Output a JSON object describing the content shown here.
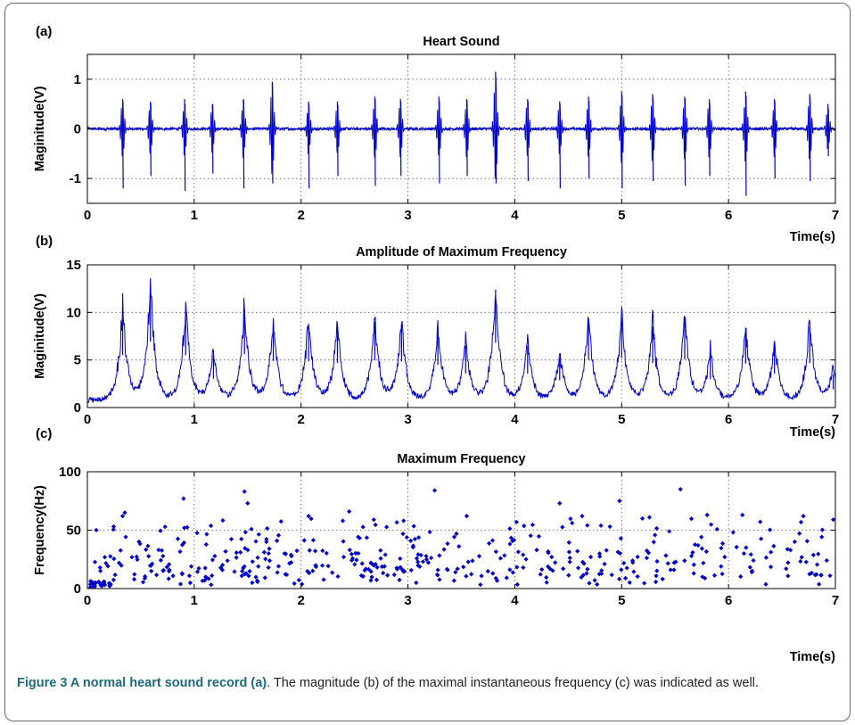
{
  "chart_data": [
    {
      "panel": "(a)",
      "title": "Heart Sound",
      "type": "line",
      "ylabel": "Maginitude(V)",
      "xlabel": "Time(s)",
      "xlim": [
        0,
        7
      ],
      "ylim": [
        -1.5,
        1.5
      ],
      "xticks": [
        0,
        1,
        2,
        3,
        4,
        5,
        6,
        7
      ],
      "yticks": [
        -1,
        0,
        1
      ],
      "grid": true,
      "color": "#0000cc",
      "events": [
        {
          "t": 0.33,
          "amp": 0.6,
          "neg": -1.2
        },
        {
          "t": 0.59,
          "amp": 0.55,
          "neg": -0.95
        },
        {
          "t": 0.91,
          "amp": 0.6,
          "neg": -1.25
        },
        {
          "t": 1.17,
          "amp": 0.5,
          "neg": -0.9
        },
        {
          "t": 1.46,
          "amp": 0.6,
          "neg": -1.2
        },
        {
          "t": 1.73,
          "amp": 0.95,
          "neg": -1.1
        },
        {
          "t": 2.07,
          "amp": 0.55,
          "neg": -1.2
        },
        {
          "t": 2.34,
          "amp": 0.55,
          "neg": -0.95
        },
        {
          "t": 2.69,
          "amp": 0.65,
          "neg": -1.15
        },
        {
          "t": 2.93,
          "amp": 0.6,
          "neg": -0.95
        },
        {
          "t": 3.29,
          "amp": 0.65,
          "neg": -1.1
        },
        {
          "t": 3.55,
          "amp": 0.6,
          "neg": -0.95
        },
        {
          "t": 3.82,
          "amp": 1.15,
          "neg": -1.1
        },
        {
          "t": 4.12,
          "amp": 0.6,
          "neg": -1.05
        },
        {
          "t": 4.42,
          "amp": 0.55,
          "neg": -1.2
        },
        {
          "t": 4.69,
          "amp": 0.65,
          "neg": -1.0
        },
        {
          "t": 5.0,
          "amp": 0.75,
          "neg": -1.2
        },
        {
          "t": 5.29,
          "amp": 0.7,
          "neg": -1.05
        },
        {
          "t": 5.59,
          "amp": 0.65,
          "neg": -1.15
        },
        {
          "t": 5.82,
          "amp": 0.6,
          "neg": -0.95
        },
        {
          "t": 6.16,
          "amp": 0.75,
          "neg": -1.35
        },
        {
          "t": 6.43,
          "amp": 0.6,
          "neg": -1.0
        },
        {
          "t": 6.76,
          "amp": 0.7,
          "neg": -1.05
        },
        {
          "t": 6.93,
          "amp": 0.5,
          "neg": -0.55
        }
      ]
    },
    {
      "panel": "(b)",
      "title": "Amplitude of Maximum Frequency",
      "type": "line",
      "ylabel": "Maginitude(V)",
      "xlabel": "Time(s)",
      "xlim": [
        0,
        7
      ],
      "ylim": [
        0,
        15
      ],
      "xticks": [
        0,
        1,
        2,
        3,
        4,
        5,
        6,
        7
      ],
      "yticks": [
        0,
        5,
        10,
        15
      ],
      "grid": true,
      "color": "#0000cc",
      "peaks": [
        {
          "t": 0.33,
          "v": 10.0
        },
        {
          "t": 0.59,
          "v": 12.6
        },
        {
          "t": 0.92,
          "v": 10.0
        },
        {
          "t": 1.18,
          "v": 5.5
        },
        {
          "t": 1.47,
          "v": 10.2
        },
        {
          "t": 1.74,
          "v": 8.9
        },
        {
          "t": 2.07,
          "v": 8.8
        },
        {
          "t": 2.34,
          "v": 8.5
        },
        {
          "t": 2.69,
          "v": 9.0
        },
        {
          "t": 2.94,
          "v": 8.8
        },
        {
          "t": 3.28,
          "v": 8.2
        },
        {
          "t": 3.54,
          "v": 6.5
        },
        {
          "t": 3.82,
          "v": 12.4
        },
        {
          "t": 4.12,
          "v": 6.5
        },
        {
          "t": 4.42,
          "v": 5.2
        },
        {
          "t": 4.69,
          "v": 9.1
        },
        {
          "t": 5.0,
          "v": 9.5
        },
        {
          "t": 5.29,
          "v": 8.5
        },
        {
          "t": 5.59,
          "v": 9.2
        },
        {
          "t": 5.83,
          "v": 5.4
        },
        {
          "t": 6.16,
          "v": 8.4
        },
        {
          "t": 6.43,
          "v": 6.5
        },
        {
          "t": 6.76,
          "v": 8.5
        },
        {
          "t": 6.98,
          "v": 3.5
        }
      ],
      "baseline": 0.8
    },
    {
      "panel": "(c)",
      "title": "Maximum Frequency",
      "type": "scatter",
      "ylabel": "Frequency(Hz)",
      "xlabel": "Time(s)",
      "xlim": [
        0,
        7
      ],
      "ylim": [
        0,
        100
      ],
      "xticks": [
        0,
        1,
        2,
        3,
        4,
        5,
        6,
        7
      ],
      "yticks": [
        0,
        50,
        100
      ],
      "grid": true,
      "color": "#0000cc",
      "highlighted_points": [
        {
          "x": 0.9,
          "y": 77
        },
        {
          "x": 1.47,
          "y": 83
        },
        {
          "x": 1.5,
          "y": 73
        },
        {
          "x": 3.25,
          "y": 84
        },
        {
          "x": 5.55,
          "y": 85
        },
        {
          "x": 4.98,
          "y": 75
        },
        {
          "x": 4.42,
          "y": 73
        },
        {
          "x": 2.45,
          "y": 66
        },
        {
          "x": 0.35,
          "y": 65
        },
        {
          "x": 0.33,
          "y": 62
        },
        {
          "x": 2.07,
          "y": 62
        },
        {
          "x": 2.68,
          "y": 59
        },
        {
          "x": 2.96,
          "y": 58
        },
        {
          "x": 3.55,
          "y": 62
        },
        {
          "x": 4.63,
          "y": 62
        },
        {
          "x": 5.26,
          "y": 61
        },
        {
          "x": 5.8,
          "y": 63
        },
        {
          "x": 6.13,
          "y": 63
        },
        {
          "x": 6.7,
          "y": 62
        },
        {
          "x": 6.98,
          "y": 59
        }
      ]
    }
  ],
  "panel_labels": [
    "(a)",
    "(b)",
    "(c)"
  ],
  "caption": {
    "lead": "Figure 3 A normal heart sound record (a)",
    "body": ". The magnitude (b) of the maximal instantaneous frequency (c) was indicated as well."
  }
}
